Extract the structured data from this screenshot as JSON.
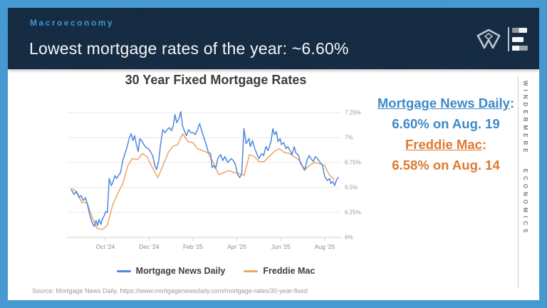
{
  "slide": {
    "border_color": "#4799d2",
    "header": {
      "kicker": "Macroeconomy",
      "kicker_color": "#3f96d2",
      "title": "Lowest mortgage rates of the year: ~6.60%",
      "bg_color": "#132b45"
    },
    "brand": {
      "vertical_text": "WINDERMERE ECONOMICS"
    },
    "callout": {
      "items": [
        {
          "label": "Mortgage News Daily",
          "colon": ":",
          "value": "6.60% on Aug. 19",
          "color": "#3d8ac9"
        },
        {
          "label": "Freddie Mac",
          "colon": ":",
          "value": "6.58% on Aug. 14",
          "color": "#dd7a33"
        }
      ]
    },
    "source": "Source: Mortgage News Daily, https://www.mortgagenewsdaily.com/mortgage-rates/30-year-fixed"
  },
  "chart_data": {
    "type": "line",
    "title": "30 Year Fixed Mortgage Rates",
    "xlabel": "",
    "ylabel": "",
    "ylim": [
      6.0,
      7.25
    ],
    "tlim": [
      -0.55,
      11.75
    ],
    "grid": true,
    "legend_position": "bottom",
    "y_ticks": [
      {
        "v": 7.25,
        "label": "7.25%"
      },
      {
        "v": 7.0,
        "label": "7%"
      },
      {
        "v": 6.75,
        "label": "6.75%"
      },
      {
        "v": 6.5,
        "label": "6.5%"
      },
      {
        "v": 6.25,
        "label": "6.25%"
      },
      {
        "v": 6.0,
        "label": "6%"
      }
    ],
    "x_ticks": [
      {
        "t": 1,
        "label": "Oct '24"
      },
      {
        "t": 3,
        "label": "Dec '24"
      },
      {
        "t": 5,
        "label": "Feb '25"
      },
      {
        "t": 7,
        "label": "Apr '25"
      },
      {
        "t": 9,
        "label": "Jun '25"
      },
      {
        "t": 11,
        "label": "Aug '25"
      }
    ],
    "series": [
      {
        "name": "Mortgage News Daily",
        "color": "#4f86e0",
        "width": 1.5,
        "points": [
          [
            -0.55,
            6.48
          ],
          [
            -0.42,
            6.43
          ],
          [
            -0.32,
            6.46
          ],
          [
            -0.2,
            6.4
          ],
          [
            -0.1,
            6.42
          ],
          [
            0,
            6.37
          ],
          [
            0.1,
            6.4
          ],
          [
            0.2,
            6.32
          ],
          [
            0.3,
            6.22
          ],
          [
            0.4,
            6.15
          ],
          [
            0.5,
            6.11
          ],
          [
            0.58,
            6.17
          ],
          [
            0.65,
            6.12
          ],
          [
            0.72,
            6.18
          ],
          [
            0.8,
            6.13
          ],
          [
            0.88,
            6.19
          ],
          [
            0.96,
            6.22
          ],
          [
            1.02,
            6.26
          ],
          [
            1.1,
            6.25
          ],
          [
            1.18,
            6.59
          ],
          [
            1.28,
            6.52
          ],
          [
            1.36,
            6.56
          ],
          [
            1.44,
            6.62
          ],
          [
            1.52,
            6.59
          ],
          [
            1.6,
            6.62
          ],
          [
            1.7,
            6.65
          ],
          [
            1.8,
            6.77
          ],
          [
            1.9,
            6.84
          ],
          [
            2,
            6.91
          ],
          [
            2.1,
            7.0
          ],
          [
            2.18,
            7.04
          ],
          [
            2.26,
            6.97
          ],
          [
            2.34,
            7.02
          ],
          [
            2.42,
            6.93
          ],
          [
            2.5,
            6.86
          ],
          [
            2.58,
            6.99
          ],
          [
            2.66,
            6.97
          ],
          [
            2.76,
            6.93
          ],
          [
            2.86,
            6.9
          ],
          [
            2.96,
            6.89
          ],
          [
            3.06,
            6.86
          ],
          [
            3.16,
            6.82
          ],
          [
            3.26,
            6.72
          ],
          [
            3.34,
            6.68
          ],
          [
            3.44,
            6.77
          ],
          [
            3.52,
            6.93
          ],
          [
            3.62,
            7.08
          ],
          [
            3.72,
            7.05
          ],
          [
            3.82,
            7.08
          ],
          [
            3.92,
            7.1
          ],
          [
            4.02,
            7.07
          ],
          [
            4.1,
            7.12
          ],
          [
            4.18,
            7.23
          ],
          [
            4.26,
            7.15
          ],
          [
            4.34,
            7.18
          ],
          [
            4.44,
            7.26
          ],
          [
            4.52,
            7.12
          ],
          [
            4.6,
            7.07
          ],
          [
            4.7,
            7.02
          ],
          [
            4.8,
            7.08
          ],
          [
            4.9,
            7.05
          ],
          [
            5,
            7.05
          ],
          [
            5.1,
            7.03
          ],
          [
            5.2,
            7.08
          ],
          [
            5.3,
            7.14
          ],
          [
            5.42,
            7.05
          ],
          [
            5.5,
            7.0
          ],
          [
            5.6,
            6.93
          ],
          [
            5.7,
            6.85
          ],
          [
            5.8,
            6.84
          ],
          [
            5.87,
            6.7
          ],
          [
            5.95,
            6.72
          ],
          [
            6.03,
            6.69
          ],
          [
            6.13,
            6.79
          ],
          [
            6.26,
            6.83
          ],
          [
            6.35,
            6.77
          ],
          [
            6.45,
            6.81
          ],
          [
            6.58,
            6.75
          ],
          [
            6.74,
            6.79
          ],
          [
            6.84,
            6.77
          ],
          [
            6.93,
            6.73
          ],
          [
            7.03,
            6.63
          ],
          [
            7.13,
            6.6
          ],
          [
            7.22,
            6.64
          ],
          [
            7.32,
            7.09
          ],
          [
            7.42,
            6.94
          ],
          [
            7.55,
            6.99
          ],
          [
            7.61,
            6.91
          ],
          [
            7.71,
            6.97
          ],
          [
            7.81,
            6.89
          ],
          [
            7.9,
            6.84
          ],
          [
            8,
            6.79
          ],
          [
            8.13,
            6.84
          ],
          [
            8.22,
            6.82
          ],
          [
            8.32,
            6.91
          ],
          [
            8.42,
            6.87
          ],
          [
            8.55,
            6.96
          ],
          [
            8.64,
            7.09
          ],
          [
            8.71,
            7.03
          ],
          [
            8.8,
            7.06
          ],
          [
            8.87,
            6.96
          ],
          [
            8.97,
            6.99
          ],
          [
            9.03,
            6.93
          ],
          [
            9.13,
            6.95
          ],
          [
            9.23,
            6.89
          ],
          [
            9.32,
            6.91
          ],
          [
            9.42,
            6.87
          ],
          [
            9.51,
            6.83
          ],
          [
            9.61,
            6.91
          ],
          [
            9.68,
            6.85
          ],
          [
            9.81,
            6.82
          ],
          [
            9.9,
            6.74
          ],
          [
            10,
            6.71
          ],
          [
            10.1,
            6.68
          ],
          [
            10.19,
            6.77
          ],
          [
            10.29,
            6.82
          ],
          [
            10.38,
            6.79
          ],
          [
            10.48,
            6.76
          ],
          [
            10.58,
            6.81
          ],
          [
            10.67,
            6.79
          ],
          [
            10.8,
            6.75
          ],
          [
            10.9,
            6.72
          ],
          [
            11,
            6.61
          ],
          [
            11.12,
            6.57
          ],
          [
            11.22,
            6.59
          ],
          [
            11.28,
            6.54
          ],
          [
            11.38,
            6.56
          ],
          [
            11.45,
            6.52
          ],
          [
            11.55,
            6.58
          ],
          [
            11.62,
            6.6
          ]
        ]
      },
      {
        "name": "Freddie Mac",
        "color": "#f0a45f",
        "width": 1.5,
        "points": [
          [
            -0.53,
            6.49
          ],
          [
            -0.3,
            6.46
          ],
          [
            -0.07,
            6.35
          ],
          [
            0.17,
            6.35
          ],
          [
            0.4,
            6.2
          ],
          [
            0.63,
            6.09
          ],
          [
            0.87,
            6.08
          ],
          [
            1.1,
            6.12
          ],
          [
            1.33,
            6.32
          ],
          [
            1.57,
            6.44
          ],
          [
            1.8,
            6.54
          ],
          [
            2.03,
            6.72
          ],
          [
            2.23,
            6.79
          ],
          [
            2.47,
            6.78
          ],
          [
            2.7,
            6.84
          ],
          [
            2.9,
            6.81
          ],
          [
            3.17,
            6.69
          ],
          [
            3.4,
            6.6
          ],
          [
            3.63,
            6.72
          ],
          [
            3.87,
            6.85
          ],
          [
            4.07,
            6.91
          ],
          [
            4.3,
            6.93
          ],
          [
            4.53,
            7.04
          ],
          [
            4.77,
            6.96
          ],
          [
            5,
            6.95
          ],
          [
            5.2,
            6.89
          ],
          [
            5.43,
            6.87
          ],
          [
            5.67,
            6.85
          ],
          [
            5.9,
            6.76
          ],
          [
            6.17,
            6.63
          ],
          [
            6.4,
            6.65
          ],
          [
            6.63,
            6.67
          ],
          [
            6.87,
            6.65
          ],
          [
            7.1,
            6.64
          ],
          [
            7.33,
            6.62
          ],
          [
            7.57,
            6.83
          ],
          [
            7.8,
            6.81
          ],
          [
            8,
            6.76
          ],
          [
            8.23,
            6.76
          ],
          [
            8.47,
            6.81
          ],
          [
            8.7,
            6.86
          ],
          [
            8.93,
            6.89
          ],
          [
            9.17,
            6.85
          ],
          [
            9.4,
            6.84
          ],
          [
            9.6,
            6.81
          ],
          [
            9.87,
            6.77
          ],
          [
            10.07,
            6.67
          ],
          [
            10.3,
            6.72
          ],
          [
            10.53,
            6.75
          ],
          [
            10.77,
            6.74
          ],
          [
            11,
            6.72
          ],
          [
            11.2,
            6.63
          ],
          [
            11.43,
            6.58
          ]
        ]
      }
    ]
  }
}
